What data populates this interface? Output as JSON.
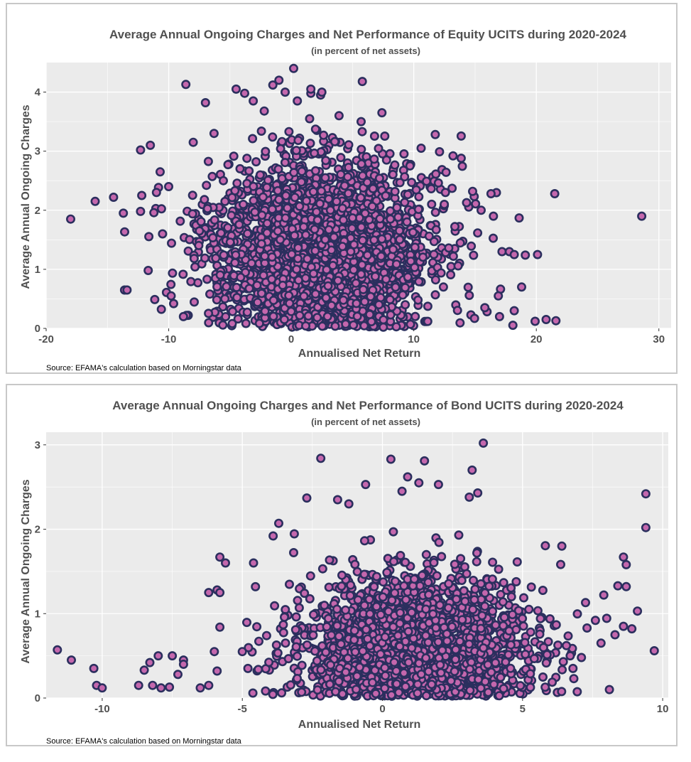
{
  "colors": {
    "panel_bg": "#ebebeb",
    "grid": "#ffffff",
    "point_fill": "#c467ad",
    "point_stroke": "#2b2f5e",
    "text": "#505050"
  },
  "chart_data": [
    {
      "type": "scatter",
      "title": "Average Annual Ongoing Charges and Net Performance of Equity UCITS during 2020-2024",
      "subtitle": "(in percent of net assets)",
      "xlabel": "Annualised Net Return",
      "ylabel": "Average Annual Ongoing Charges",
      "source": "Source: EFAMA's calculation based on Morningstar data",
      "xlim": [
        -20,
        31
      ],
      "ylim": [
        0,
        4.5
      ],
      "xticks": [
        -20,
        -10,
        0,
        10,
        20,
        30
      ],
      "yticks": [
        0,
        1,
        2,
        3,
        4
      ],
      "xtick_labels": [
        "-20",
        "-10",
        "0",
        "10",
        "20",
        "30"
      ],
      "ytick_labels": [
        "0",
        "1",
        "2",
        "3",
        "4"
      ],
      "cloud": {
        "count": 2600,
        "x_mean": 2.5,
        "x_sd": 4.6,
        "y_mean": 1.35,
        "y_sd": 0.78,
        "y_min": 0.02,
        "y_max": 3.4
      },
      "points": [
        {
          "x": -18,
          "y": 1.85
        },
        {
          "x": -16,
          "y": 2.15
        },
        {
          "x": -14.5,
          "y": 2.22
        },
        {
          "x": -13.7,
          "y": 1.95
        },
        {
          "x": -13.6,
          "y": 0.65
        },
        {
          "x": -13.4,
          "y": 0.65
        },
        {
          "x": -12.3,
          "y": 3.02
        },
        {
          "x": -12.2,
          "y": 2.25
        },
        {
          "x": -12.3,
          "y": 1.98
        },
        {
          "x": -11.5,
          "y": 3.1
        },
        {
          "x": -11,
          "y": 2.3
        },
        {
          "x": -10.5,
          "y": 1.6
        },
        {
          "x": -10.7,
          "y": 2.65
        },
        {
          "x": -10,
          "y": 2.4
        },
        {
          "x": -9.8,
          "y": 0.55
        },
        {
          "x": -9.6,
          "y": 0.42
        },
        {
          "x": -8.8,
          "y": 0.2
        },
        {
          "x": -8.6,
          "y": 4.13
        },
        {
          "x": -8,
          "y": 3.15
        },
        {
          "x": -7,
          "y": 3.82
        },
        {
          "x": -6.3,
          "y": 3.3
        },
        {
          "x": -4.5,
          "y": 4.05
        },
        {
          "x": -3.8,
          "y": 3.98
        },
        {
          "x": -3.1,
          "y": 3.85
        },
        {
          "x": -2.2,
          "y": 3.68
        },
        {
          "x": -1.5,
          "y": 4.12
        },
        {
          "x": -1,
          "y": 4.2
        },
        {
          "x": -0.5,
          "y": 4.0
        },
        {
          "x": 0.2,
          "y": 4.4
        },
        {
          "x": 0.5,
          "y": 3.85
        },
        {
          "x": 1.6,
          "y": 3.98
        },
        {
          "x": 1.6,
          "y": 4.05
        },
        {
          "x": 2.4,
          "y": 3.95
        },
        {
          "x": 2.5,
          "y": 4.0
        },
        {
          "x": 1.5,
          "y": 3.55
        },
        {
          "x": 3.9,
          "y": 3.6
        },
        {
          "x": 5.8,
          "y": 4.18
        },
        {
          "x": 7.4,
          "y": 3.65
        },
        {
          "x": 5.7,
          "y": 3.5
        },
        {
          "x": 10.6,
          "y": 3.05
        },
        {
          "x": 12.1,
          "y": 2.99
        },
        {
          "x": 13.2,
          "y": 2.92
        },
        {
          "x": 14.8,
          "y": 2.32
        },
        {
          "x": 15.5,
          "y": 2.0
        },
        {
          "x": 16.3,
          "y": 2.28
        },
        {
          "x": 16.5,
          "y": 1.9
        },
        {
          "x": 18.6,
          "y": 1.87
        },
        {
          "x": 17.2,
          "y": 1.3
        },
        {
          "x": 17.8,
          "y": 1.3
        },
        {
          "x": 18.2,
          "y": 1.25
        },
        {
          "x": 19.1,
          "y": 1.24
        },
        {
          "x": 20.1,
          "y": 1.25
        },
        {
          "x": 18.8,
          "y": 0.7
        },
        {
          "x": 18.2,
          "y": 0.3
        },
        {
          "x": 19.9,
          "y": 0.12
        },
        {
          "x": 20.8,
          "y": 0.15
        },
        {
          "x": 21.6,
          "y": 0.13
        },
        {
          "x": 21.5,
          "y": 2.28
        },
        {
          "x": 28.6,
          "y": 1.9
        },
        {
          "x": 17.0,
          "y": 0.2
        },
        {
          "x": 15.8,
          "y": 0.35
        },
        {
          "x": 16.9,
          "y": 0.55
        }
      ]
    },
    {
      "type": "scatter",
      "title": "Average Annual Ongoing Charges and Net Performance of Bond UCITS during 2020-2024",
      "subtitle": "(in percent of net assets)",
      "xlabel": "Annualised Net Return",
      "ylabel": "Average Annual Ongoing Charges",
      "source": "Source: EFAMA's calculation based on Morningstar data",
      "xlim": [
        -12,
        10.2
      ],
      "ylim": [
        0,
        3.15
      ],
      "xticks": [
        -10,
        -5,
        0,
        5,
        10
      ],
      "yticks": [
        0,
        1,
        2,
        3
      ],
      "xtick_labels": [
        "-10",
        "-5",
        "0",
        "5",
        "10"
      ],
      "ytick_labels": [
        "0",
        "1",
        "2",
        "3"
      ],
      "cloud": {
        "count": 2400,
        "x_mean": 1.2,
        "x_sd": 2.0,
        "y_mean": 0.6,
        "y_sd": 0.42,
        "y_min": 0.02,
        "y_max": 2.2
      },
      "points": [
        {
          "x": -11.6,
          "y": 0.57
        },
        {
          "x": -11.1,
          "y": 0.45
        },
        {
          "x": -10.3,
          "y": 0.35
        },
        {
          "x": -10.2,
          "y": 0.15
        },
        {
          "x": -10.0,
          "y": 0.12
        },
        {
          "x": -8.7,
          "y": 0.15
        },
        {
          "x": -8.5,
          "y": 0.33
        },
        {
          "x": -8.3,
          "y": 0.42
        },
        {
          "x": -8.0,
          "y": 0.5
        },
        {
          "x": -8.2,
          "y": 0.15
        },
        {
          "x": -7.9,
          "y": 0.12
        },
        {
          "x": -7.6,
          "y": 0.13
        },
        {
          "x": -7.5,
          "y": 0.5
        },
        {
          "x": -7.3,
          "y": 0.28
        },
        {
          "x": -7.1,
          "y": 0.45
        },
        {
          "x": -7.1,
          "y": 0.4
        },
        {
          "x": -6.5,
          "y": 0.12
        },
        {
          "x": -6.2,
          "y": 0.15
        },
        {
          "x": -6.2,
          "y": 1.25
        },
        {
          "x": -5.9,
          "y": 1.28
        },
        {
          "x": -5.8,
          "y": 1.25
        },
        {
          "x": -5.8,
          "y": 1.67
        },
        {
          "x": -5.6,
          "y": 1.6
        },
        {
          "x": -6.0,
          "y": 0.55
        },
        {
          "x": -5.8,
          "y": 0.84
        },
        {
          "x": -5.9,
          "y": 0.32
        },
        {
          "x": -5.0,
          "y": 0.55
        },
        {
          "x": -4.8,
          "y": 0.35
        },
        {
          "x": -4.6,
          "y": 1.6
        },
        {
          "x": -3.9,
          "y": 1.92
        },
        {
          "x": -3.7,
          "y": 2.07
        },
        {
          "x": -2.7,
          "y": 2.37
        },
        {
          "x": -2.2,
          "y": 2.84
        },
        {
          "x": -1.6,
          "y": 2.35
        },
        {
          "x": -1.2,
          "y": 2.3
        },
        {
          "x": -0.6,
          "y": 2.53
        },
        {
          "x": 0.3,
          "y": 2.83
        },
        {
          "x": 0.7,
          "y": 2.45
        },
        {
          "x": 0.9,
          "y": 2.62
        },
        {
          "x": 1.5,
          "y": 2.81
        },
        {
          "x": 1.3,
          "y": 2.55
        },
        {
          "x": 2.0,
          "y": 2.53
        },
        {
          "x": 3.1,
          "y": 2.38
        },
        {
          "x": 3.4,
          "y": 2.43
        },
        {
          "x": 3.2,
          "y": 2.7
        },
        {
          "x": 3.6,
          "y": 3.02
        },
        {
          "x": 6.4,
          "y": 1.8
        },
        {
          "x": 6.7,
          "y": 0.5
        },
        {
          "x": 7.3,
          "y": 0.83
        },
        {
          "x": 7.6,
          "y": 0.92
        },
        {
          "x": 7.8,
          "y": 0.65
        },
        {
          "x": 7.9,
          "y": 1.22
        },
        {
          "x": 8.1,
          "y": 0.1
        },
        {
          "x": 8.3,
          "y": 0.75
        },
        {
          "x": 8.4,
          "y": 1.33
        },
        {
          "x": 8.6,
          "y": 1.67
        },
        {
          "x": 8.6,
          "y": 0.85
        },
        {
          "x": 8.7,
          "y": 1.58
        },
        {
          "x": 8.7,
          "y": 1.32
        },
        {
          "x": 8.9,
          "y": 0.82
        },
        {
          "x": 9.1,
          "y": 1.03
        },
        {
          "x": 9.4,
          "y": 2.42
        },
        {
          "x": 9.4,
          "y": 2.02
        },
        {
          "x": 9.7,
          "y": 0.56
        },
        {
          "x": 7.1,
          "y": 0.48
        },
        {
          "x": 6.8,
          "y": 0.35
        }
      ]
    }
  ]
}
